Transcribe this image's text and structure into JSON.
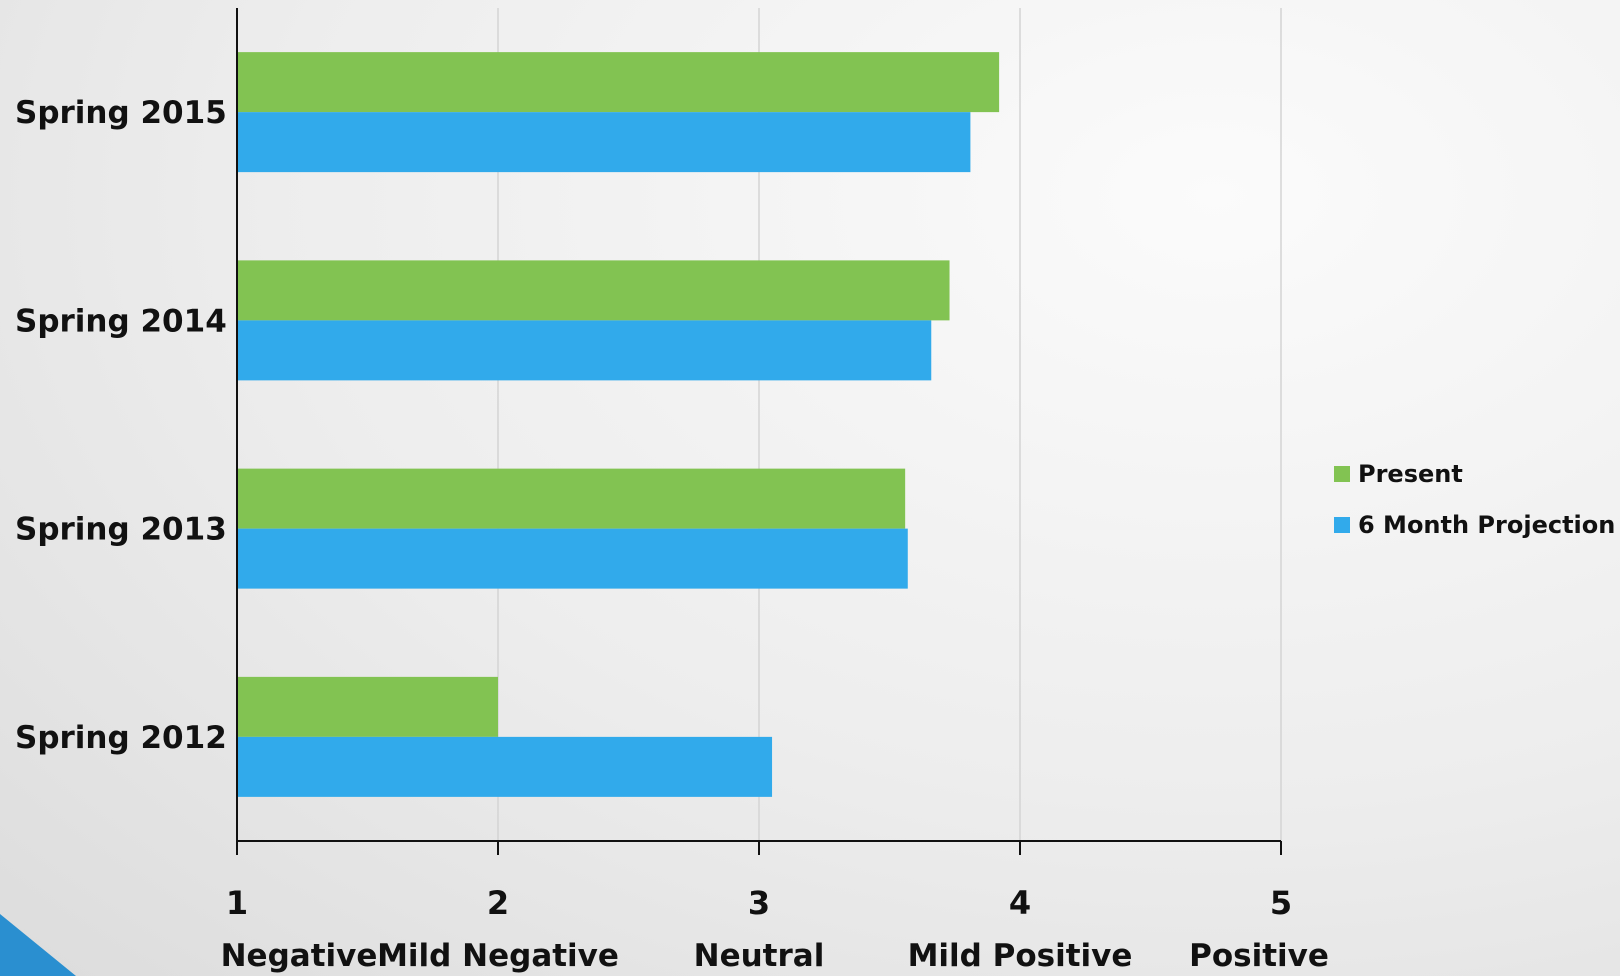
{
  "chart_data": {
    "type": "bar",
    "orientation": "horizontal",
    "categories": [
      "Spring 2012",
      "Spring 2013",
      "Spring 2014",
      "Spring 2015"
    ],
    "series": [
      {
        "name": "Present",
        "color": "#82c352",
        "values": [
          2.0,
          3.56,
          3.73,
          3.92
        ]
      },
      {
        "name": "6 Month Projection",
        "color": "#31aaeb",
        "values": [
          3.05,
          3.57,
          3.66,
          3.81
        ]
      }
    ],
    "xlim": [
      1,
      5
    ],
    "x_ticks": [
      {
        "value": 1,
        "number": "1",
        "label": "Negative"
      },
      {
        "value": 2,
        "number": "2",
        "label": "Mild Negative"
      },
      {
        "value": 3,
        "number": "3",
        "label": "Neutral"
      },
      {
        "value": 4,
        "number": "4",
        "label": "Mild Positive"
      },
      {
        "value": 5,
        "number": "5",
        "label": "Positive"
      }
    ],
    "title": "",
    "xlabel": "",
    "ylabel": "",
    "grid": "vertical",
    "legend_position": "right"
  }
}
